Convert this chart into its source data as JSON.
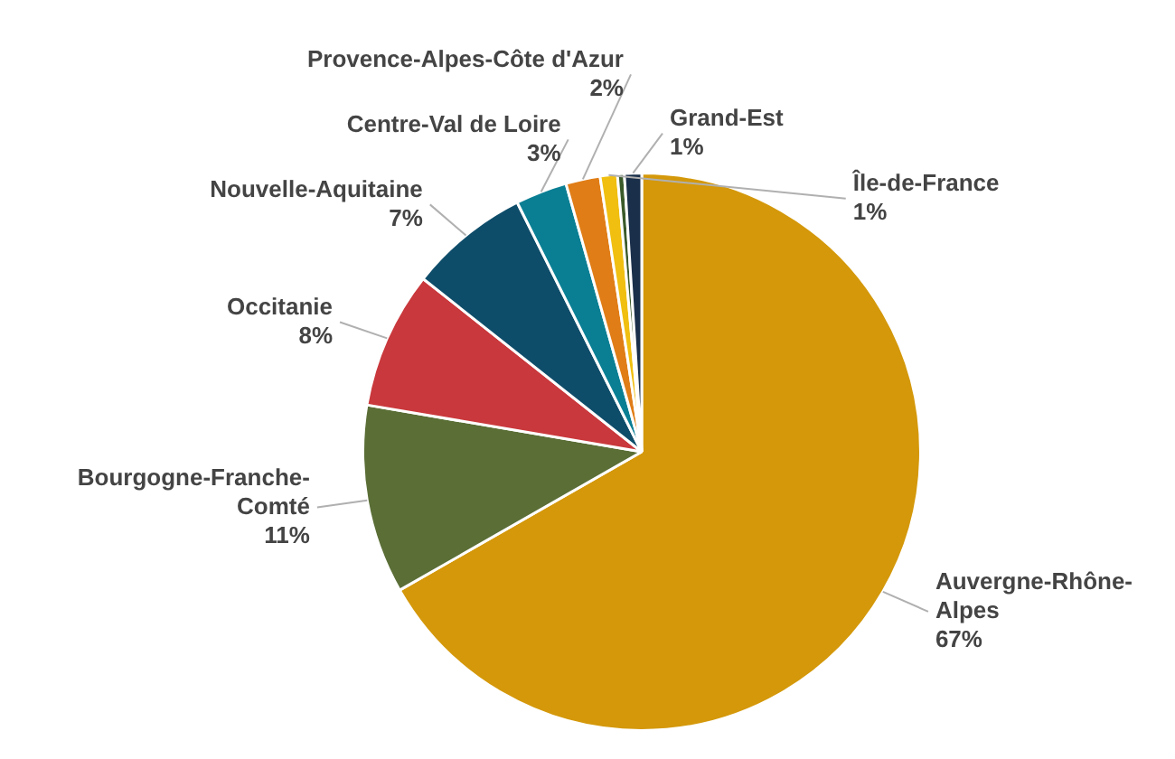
{
  "chart_data": {
    "type": "pie",
    "categories": [
      "Auvergne-Rhône-Alpes",
      "Bourgogne-Franche-Comté",
      "Occitanie",
      "Nouvelle-Aquitaine",
      "Centre-Val de Loire",
      "Provence-Alpes-Côte d'Azur",
      "Île-de-France",
      null,
      "Grand-Est"
    ],
    "values": [
      67,
      11,
      8,
      7,
      3,
      2,
      1,
      0.4,
      1
    ],
    "colors": [
      "#d4980a",
      "#5a6e36",
      "#c9383c",
      "#0e4d6a",
      "#0a7f94",
      "#e07d16",
      "#f0bf10",
      "#3b5a2a",
      "#1a2f4a"
    ],
    "value_labels": [
      "67%",
      "11%",
      "8%",
      "7%",
      "3%",
      "2%",
      "1%",
      null,
      "1%"
    ],
    "legend": false
  }
}
